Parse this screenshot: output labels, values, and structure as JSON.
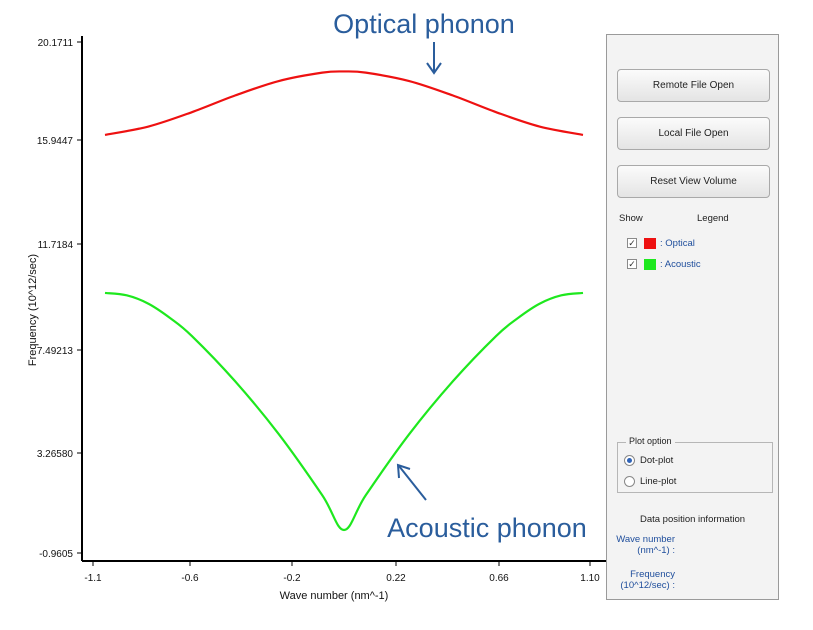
{
  "chart_data": {
    "type": "line",
    "xlabel": "Wave number (nm^-1)",
    "ylabel": "Frequency (10^12/sec)",
    "x_ticks": [
      "-1.1",
      "-0.6",
      "-0.2",
      "0.22",
      "0.66",
      "1.10"
    ],
    "y_ticks": [
      "20.1711",
      "15.9447",
      "11.7184",
      "7.49213",
      "3.26580",
      "-0.9605"
    ],
    "xlim": [
      -1.1,
      1.1
    ],
    "ylim": [
      -0.9605,
      20.1711
    ],
    "series": [
      {
        "name": "Optical",
        "color": "#ee1111",
        "x": [
          -1.1,
          -0.9,
          -0.7,
          -0.5,
          -0.3,
          -0.1,
          0.0,
          0.1,
          0.3,
          0.5,
          0.7,
          0.9,
          1.1
        ],
        "y": [
          16.5,
          16.85,
          17.45,
          18.15,
          18.75,
          19.1,
          19.15,
          19.1,
          18.75,
          18.15,
          17.45,
          16.85,
          16.5
        ]
      },
      {
        "name": "Acoustic",
        "color": "#1ee81e",
        "x": [
          -1.1,
          -1.0,
          -0.9,
          -0.8,
          -0.7,
          -0.5,
          -0.3,
          -0.1,
          0.0,
          0.1,
          0.3,
          0.5,
          0.7,
          0.8,
          0.9,
          1.0,
          1.1
        ],
        "y": [
          9.9,
          9.8,
          9.45,
          8.85,
          8.1,
          6.2,
          4.0,
          1.45,
          0.0,
          1.45,
          4.0,
          6.2,
          8.1,
          8.85,
          9.45,
          9.8,
          9.9
        ]
      }
    ],
    "annotations": [
      {
        "text": "Optical phonon",
        "x": 0.22,
        "y": 17.9
      },
      {
        "text": "Acoustic phonon",
        "x": 0.16,
        "y": 2.3
      }
    ]
  },
  "panel": {
    "buttons": {
      "remote": "Remote File Open",
      "local": "Local File Open",
      "reset": "Reset View Volume"
    },
    "legend_header": {
      "show": "Show",
      "legend": "Legend"
    },
    "legend_items": [
      {
        "label": ": Optical",
        "checked": true,
        "color": "#ee1111"
      },
      {
        "label": ": Acoustic",
        "checked": true,
        "color": "#1ee81e"
      }
    ],
    "plot_option": {
      "title": "Plot option",
      "options": [
        {
          "label": "Dot-plot",
          "selected": true
        },
        {
          "label": "Line-plot",
          "selected": false
        }
      ]
    },
    "data_info": {
      "title": "Data position information",
      "wave_label": "Wave number (nm^-1) :",
      "freq_label": "Frequency (10^12/sec) :"
    }
  }
}
